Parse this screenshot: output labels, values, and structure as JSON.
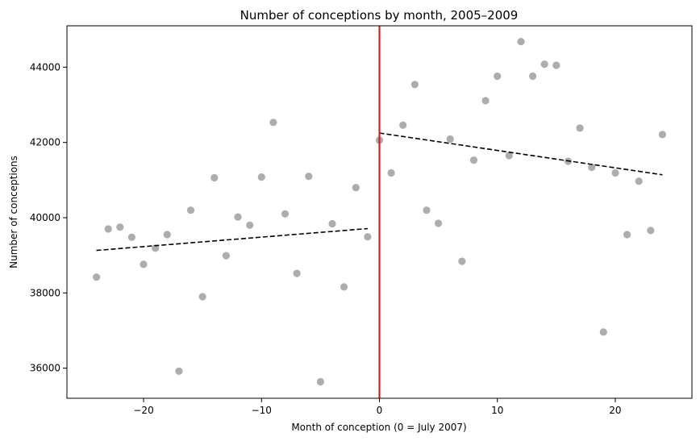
{
  "chart_data": {
    "type": "scatter",
    "title": "Number of conceptions by month, 2005–2009",
    "xlabel": "Month of conception (0 = July 2007)",
    "ylabel": "Number of conceptions",
    "xlim": [
      -26.5,
      26.5
    ],
    "ylim": [
      35200,
      45100
    ],
    "xticks": [
      -20,
      -10,
      0,
      10,
      20
    ],
    "xtick_labels": [
      "−20",
      "−10",
      "0",
      "10",
      "20"
    ],
    "yticks": [
      36000,
      38000,
      40000,
      42000,
      44000
    ],
    "ytick_labels": [
      "36000",
      "38000",
      "40000",
      "42000",
      "44000"
    ],
    "grid": false,
    "colors": {
      "points": "#999999",
      "fit_line": "#000000",
      "cutoff_line": "#e31a1c"
    },
    "points": {
      "x": [
        -24,
        -23,
        -22,
        -21,
        -20,
        -19,
        -18,
        -17,
        -16,
        -15,
        -14,
        -13,
        -12,
        -11,
        -10,
        -9,
        -8,
        -7,
        -6,
        -5,
        -4,
        -3,
        -2,
        -1,
        0,
        1,
        2,
        3,
        4,
        5,
        6,
        7,
        8,
        9,
        10,
        11,
        12,
        13,
        14,
        15,
        16,
        17,
        18,
        19,
        20,
        21,
        22,
        23,
        24
      ],
      "y": [
        38420,
        39700,
        39750,
        39480,
        38760,
        39190,
        39550,
        35920,
        40200,
        37900,
        41060,
        38990,
        40020,
        39800,
        41080,
        42530,
        40100,
        38520,
        41100,
        35640,
        39840,
        38160,
        40800,
        39490,
        42060,
        41190,
        42460,
        43540,
        40200,
        39850,
        42090,
        38840,
        41530,
        43110,
        43760,
        41650,
        44680,
        43760,
        44080,
        44050,
        41500,
        42380,
        41340,
        36960,
        41190,
        39550,
        40970,
        39660,
        42210
      ]
    },
    "fit_lines": [
      {
        "x": [
          -24,
          -1
        ],
        "y": [
          39130,
          39710
        ]
      },
      {
        "x": [
          0,
          24
        ],
        "y": [
          42250,
          41140
        ]
      }
    ],
    "cutoff_x": 0
  }
}
